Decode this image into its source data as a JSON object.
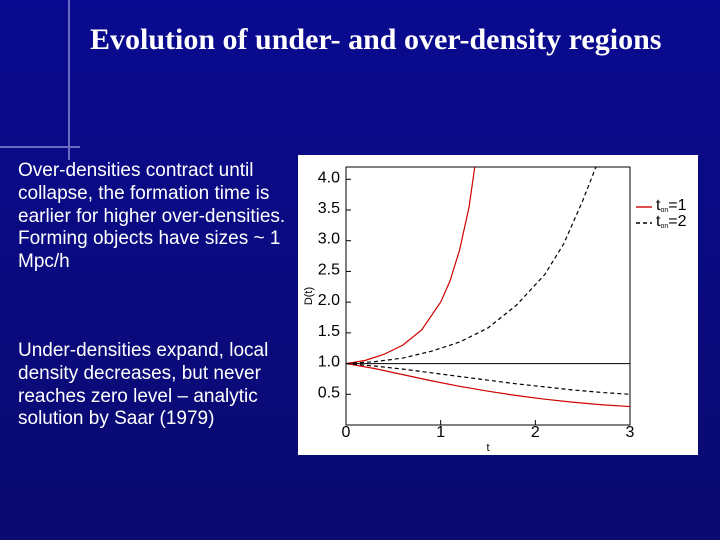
{
  "title": "Evolution of under- and over-density regions",
  "para1": "Over-densities contract until collapse, the formation time is earlier for higher over-densities. Forming objects have sizes ~ 1 Mpc/h",
  "para2": "Under-densities expand, local density decreases, but never reaches zero level – analytic solution by Saar (1979)",
  "chart": {
    "type": "line",
    "background_color": "#ffffff",
    "plot_border_color": "#000000",
    "xlabel": "t",
    "ylabel": "D(t)",
    "xlim": [
      0,
      3
    ],
    "ylim": [
      0,
      4.2
    ],
    "xticks": [
      0,
      1,
      2,
      3
    ],
    "yticks": [
      0.5,
      1.0,
      1.5,
      2.0,
      2.5,
      3.0,
      3.5,
      4.0
    ],
    "legend": {
      "items": [
        {
          "label": "t_on=1",
          "color": "#d00000"
        },
        {
          "label": "t_on=2",
          "color": "#000000",
          "dash": "4 3"
        }
      ],
      "position": "right"
    },
    "ref_line": {
      "y": 1.0,
      "color": "#000000",
      "width": 1
    },
    "series": [
      {
        "name": "over_ton1",
        "color": "#d00000",
        "width": 1.2,
        "dash": null,
        "points": [
          [
            0.0,
            1.0
          ],
          [
            0.2,
            1.05
          ],
          [
            0.4,
            1.15
          ],
          [
            0.6,
            1.3
          ],
          [
            0.8,
            1.55
          ],
          [
            1.0,
            2.0
          ],
          [
            1.1,
            2.35
          ],
          [
            1.2,
            2.85
          ],
          [
            1.3,
            3.55
          ],
          [
            1.36,
            4.2
          ]
        ]
      },
      {
        "name": "over_ton2",
        "color": "#000000",
        "width": 1.2,
        "dash": "4 3",
        "points": [
          [
            0.0,
            1.0
          ],
          [
            0.3,
            1.03
          ],
          [
            0.6,
            1.09
          ],
          [
            0.9,
            1.2
          ],
          [
            1.2,
            1.35
          ],
          [
            1.5,
            1.58
          ],
          [
            1.8,
            1.95
          ],
          [
            2.1,
            2.45
          ],
          [
            2.3,
            2.95
          ],
          [
            2.5,
            3.65
          ],
          [
            2.64,
            4.2
          ]
        ]
      },
      {
        "name": "under_ton1",
        "color": "#d00000",
        "width": 1.2,
        "dash": null,
        "points": [
          [
            0.0,
            1.0
          ],
          [
            0.3,
            0.92
          ],
          [
            0.6,
            0.82
          ],
          [
            0.9,
            0.72
          ],
          [
            1.2,
            0.63
          ],
          [
            1.5,
            0.55
          ],
          [
            1.8,
            0.48
          ],
          [
            2.1,
            0.42
          ],
          [
            2.4,
            0.37
          ],
          [
            2.7,
            0.33
          ],
          [
            3.0,
            0.3
          ]
        ]
      },
      {
        "name": "under_ton2",
        "color": "#000000",
        "width": 1.2,
        "dash": "4 3",
        "points": [
          [
            0.0,
            1.0
          ],
          [
            0.3,
            0.96
          ],
          [
            0.6,
            0.91
          ],
          [
            0.9,
            0.85
          ],
          [
            1.2,
            0.79
          ],
          [
            1.5,
            0.73
          ],
          [
            1.8,
            0.67
          ],
          [
            2.1,
            0.62
          ],
          [
            2.4,
            0.57
          ],
          [
            2.7,
            0.53
          ],
          [
            3.0,
            0.5
          ]
        ]
      }
    ]
  }
}
